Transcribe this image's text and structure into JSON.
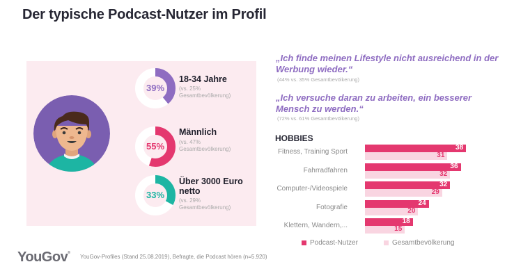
{
  "title": "Der typische Podcast-Nutzer im Profil",
  "profile": {
    "stats": [
      {
        "percent": 39,
        "percent_label": "39%",
        "title": "18-34 Jahre",
        "sub_line1": "(vs. 25%",
        "sub_line2": "Gesamtbevölkerung)",
        "color": "#8e6cc1"
      },
      {
        "percent": 55,
        "percent_label": "55%",
        "title": "Männlich",
        "sub_line1": "(vs. 47%",
        "sub_line2": "Gesamtbevölkerung)",
        "color": "#e4386f"
      },
      {
        "percent": 33,
        "percent_label": "33%",
        "title_line1": "Über 3000 Euro",
        "title_line2": "netto",
        "sub_line1": "(vs. 29%",
        "sub_line2": "Gesamtbevölkerung)",
        "color": "#1db5a3"
      }
    ]
  },
  "quotes": [
    {
      "line1": "„Ich finde meinen Lifestyle nicht ausreichend in der",
      "line2": "Werbung wieder.“",
      "sub": "(44% vs. 35% Gesamtbevölkerung)"
    },
    {
      "line1": "„Ich versuche daran zu arbeiten, ein besserer",
      "line2": "Mensch zu werden.“",
      "sub": "(72% vs. 61% Gesamtbevölkerung)"
    }
  ],
  "chart_data": {
    "type": "bar",
    "orientation": "horizontal",
    "title": "HOBBIES",
    "categories": [
      "Fitness, Training Sport",
      "Fahrradfahren",
      "Computer-/Videospiele",
      "Fotografie",
      "Klettern, Wandern,..."
    ],
    "series": [
      {
        "name": "Podcast-Nutzer",
        "color": "#e4386f",
        "values": [
          38,
          36,
          32,
          24,
          18
        ]
      },
      {
        "name": "Gesamtbevölkerung",
        "color": "#f9d5e1",
        "values": [
          31,
          32,
          29,
          20,
          15
        ]
      }
    ],
    "xlim": [
      0,
      40
    ],
    "grid": false,
    "legend": "bottom"
  },
  "legend": {
    "item1": "Podcast-Nutzer",
    "item2": "Gesamtbevölkerung"
  },
  "footer": {
    "logo": "YouGov",
    "logo_mark": "®",
    "source": "YouGov-Profiles (Stand 25.08.2019), Befragte, die Podcast hören (n=5.920)"
  }
}
